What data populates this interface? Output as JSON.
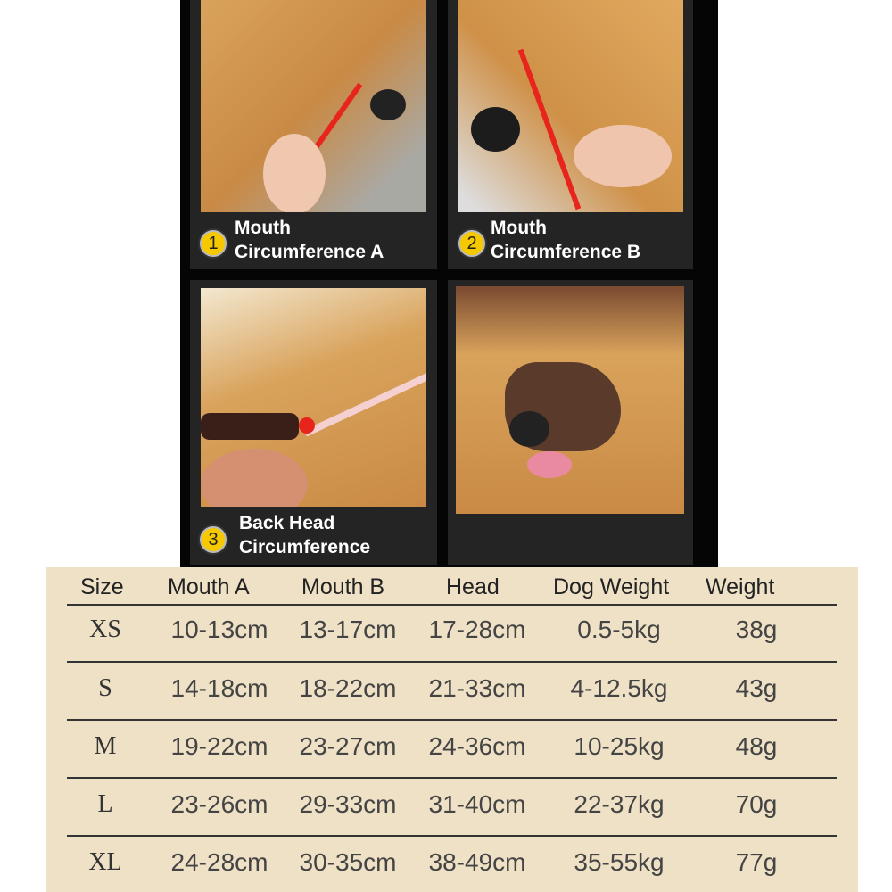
{
  "panels": [
    {
      "number": "1",
      "caption_line1": "Mouth",
      "caption_line2": "Circumference A"
    },
    {
      "number": "2",
      "caption_line1": "Mouth",
      "caption_line2": "Circumference B"
    },
    {
      "number": "3",
      "caption_line1": "Back Head",
      "caption_line2": "Circumference"
    }
  ],
  "table": {
    "headers": [
      "Size",
      "Mouth A",
      "Mouth B",
      "Head",
      "Dog Weight",
      "Weight"
    ],
    "rows": [
      [
        "XS",
        "10-13cm",
        "13-17cm",
        "17-28cm",
        "0.5-5kg",
        "38g"
      ],
      [
        "S",
        "14-18cm",
        "18-22cm",
        "21-33cm",
        "4-12.5kg",
        "43g"
      ],
      [
        "M",
        "19-22cm",
        "23-27cm",
        "24-36cm",
        "10-25kg",
        "48g"
      ],
      [
        "L",
        "23-26cm",
        "29-33cm",
        "31-40cm",
        "22-37kg",
        "70g"
      ],
      [
        "XL",
        "24-28cm",
        "30-35cm",
        "38-49cm",
        "35-55kg",
        "77g"
      ]
    ]
  },
  "colors": {
    "badge": "#f5c800",
    "table_bg": "#efe1c6",
    "strap": "#e8251c"
  }
}
